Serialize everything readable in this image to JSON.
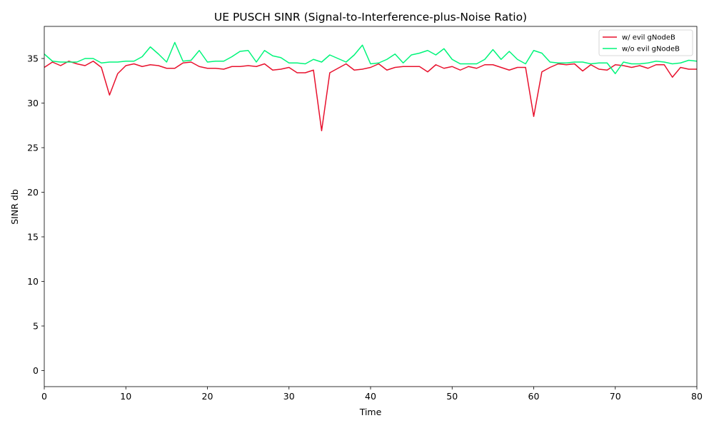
{
  "chart_data": {
    "type": "line",
    "title": "UE PUSCH SINR (Signal-to-Interference-plus-Noise Ratio)",
    "xlabel": "Time",
    "ylabel": "SINR db",
    "xlim": [
      0,
      80
    ],
    "ylim": [
      -1.8,
      38.6
    ],
    "xticks": [
      "0",
      "10",
      "20",
      "30",
      "40",
      "50",
      "60",
      "70",
      "80"
    ],
    "yticks": [
      "0",
      "5",
      "10",
      "15",
      "20",
      "25",
      "30",
      "35"
    ],
    "grid": false,
    "legend_position": "top-right",
    "x": [
      0,
      1,
      2,
      3,
      4,
      5,
      6,
      7,
      8,
      9,
      10,
      11,
      12,
      13,
      14,
      15,
      16,
      17,
      18,
      19,
      20,
      21,
      22,
      23,
      24,
      25,
      26,
      27,
      28,
      29,
      30,
      31,
      32,
      33,
      34,
      35,
      36,
      37,
      38,
      39,
      40,
      41,
      42,
      43,
      44,
      45,
      46,
      47,
      48,
      49,
      50,
      51,
      52,
      53,
      54,
      55,
      56,
      57,
      58,
      59,
      60,
      61,
      62,
      63,
      64,
      65,
      66,
      67,
      68,
      69,
      70,
      71,
      72,
      73,
      74,
      75,
      76,
      77,
      78,
      79,
      80
    ],
    "series": [
      {
        "name": "w/ evil gNodeB",
        "color": "#e8112d",
        "values": [
          34.0,
          34.6,
          34.2,
          34.7,
          34.4,
          34.2,
          34.7,
          34.0,
          30.9,
          33.3,
          34.2,
          34.4,
          34.1,
          34.3,
          34.2,
          33.9,
          33.9,
          34.5,
          34.6,
          34.1,
          33.9,
          33.9,
          33.8,
          34.1,
          34.1,
          34.2,
          34.1,
          34.4,
          33.7,
          33.8,
          34.0,
          33.4,
          33.4,
          33.7,
          26.9,
          33.4,
          33.9,
          34.4,
          33.7,
          33.8,
          34.0,
          34.4,
          33.7,
          34.0,
          34.1,
          34.1,
          34.1,
          33.5,
          34.3,
          33.9,
          34.1,
          33.7,
          34.1,
          33.9,
          34.3,
          34.3,
          34.0,
          33.7,
          34.0,
          34.0,
          28.5,
          33.5,
          34.0,
          34.4,
          34.3,
          34.4,
          33.6,
          34.3,
          33.8,
          33.7,
          34.3,
          34.2,
          34.0,
          34.2,
          33.9,
          34.3,
          34.3,
          32.9,
          34.0,
          33.8,
          33.8
        ]
      },
      {
        "name": "w/o evil gNodeB",
        "color": "#00f57a",
        "values": [
          35.5,
          34.7,
          34.6,
          34.6,
          34.6,
          35.0,
          35.0,
          34.5,
          34.6,
          34.6,
          34.7,
          34.7,
          35.2,
          36.3,
          35.5,
          34.6,
          36.8,
          34.7,
          34.8,
          35.9,
          34.6,
          34.7,
          34.7,
          35.2,
          35.8,
          35.9,
          34.6,
          35.9,
          35.3,
          35.1,
          34.5,
          34.5,
          34.4,
          34.9,
          34.6,
          35.4,
          35.0,
          34.6,
          35.4,
          36.5,
          34.4,
          34.5,
          34.9,
          35.5,
          34.5,
          35.4,
          35.6,
          35.9,
          35.4,
          36.1,
          34.9,
          34.4,
          34.4,
          34.4,
          34.9,
          36.0,
          34.9,
          35.8,
          34.9,
          34.4,
          35.9,
          35.6,
          34.6,
          34.5,
          34.5,
          34.6,
          34.6,
          34.4,
          34.5,
          34.5,
          33.3,
          34.6,
          34.4,
          34.4,
          34.5,
          34.7,
          34.6,
          34.4,
          34.5,
          34.8,
          34.7
        ]
      }
    ]
  }
}
